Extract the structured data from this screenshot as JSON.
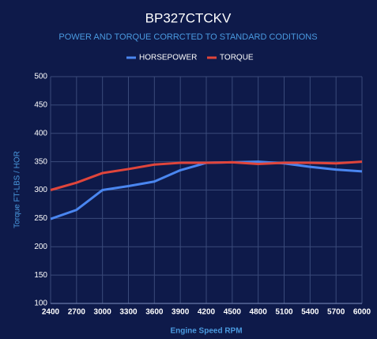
{
  "chart_data": {
    "type": "line",
    "title": "BP327CTCKV",
    "subtitle": "POWER AND TORQUE CORRCTED TO STANDARD CODITIONS",
    "x_label": "Engine Speed RPM",
    "y_label": "Torque FT-LBS / HOR",
    "x": [
      2400,
      2700,
      3000,
      3300,
      3600,
      3900,
      4200,
      4500,
      4800,
      5100,
      5400,
      5700,
      6000
    ],
    "series": [
      {
        "name": "HORSEPOWER",
        "color": "#4a86f0",
        "values": [
          249,
          265,
          300,
          307,
          315,
          335,
          348,
          349,
          350,
          347,
          341,
          336,
          333
        ]
      },
      {
        "name": "TORQUE",
        "color": "#e0453b",
        "values": [
          300,
          313,
          330,
          337,
          345,
          348,
          348,
          349,
          346,
          348,
          348,
          347,
          350
        ]
      }
    ],
    "xlim": [
      2400,
      6000
    ],
    "xticks": [
      2400,
      2700,
      3000,
      3300,
      3600,
      3900,
      4200,
      4500,
      4800,
      5100,
      5400,
      5700,
      6000
    ],
    "ylim": [
      100,
      500
    ],
    "yticks": [
      100,
      150,
      200,
      250,
      300,
      350,
      400,
      450,
      500
    ],
    "grid": true,
    "legend": "top"
  }
}
